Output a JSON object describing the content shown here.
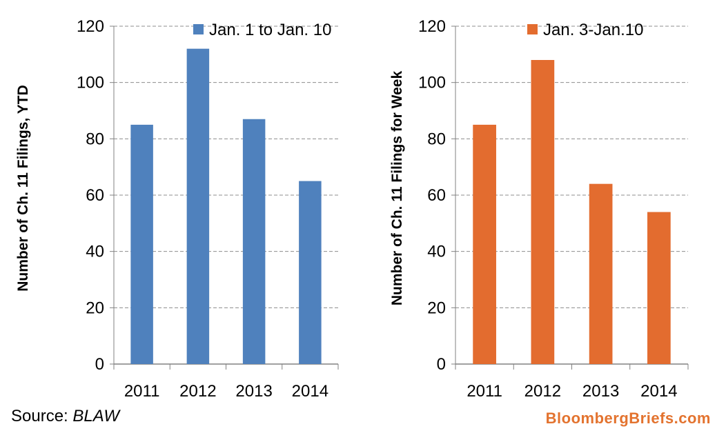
{
  "chart_data": [
    {
      "type": "bar",
      "categories": [
        "2011",
        "2012",
        "2013",
        "2014"
      ],
      "series": [
        {
          "name": "Jan. 1 to Jan. 10",
          "values": [
            85,
            112,
            87,
            65
          ],
          "color": "#4f81bd"
        }
      ],
      "ylabel": "Number of Ch. 11 Filings, YTD",
      "ylim": [
        0,
        120
      ],
      "yticks": [
        0,
        20,
        40,
        60,
        80,
        100,
        120
      ],
      "grid": true,
      "legend_position": "top-right"
    },
    {
      "type": "bar",
      "categories": [
        "2011",
        "2012",
        "2013",
        "2014"
      ],
      "series": [
        {
          "name": "Jan. 3-Jan.10",
          "values": [
            85,
            108,
            64,
            54
          ],
          "color": "#e36c2f"
        }
      ],
      "ylabel": "Number of Ch. 11 Filings for Week",
      "ylim": [
        0,
        120
      ],
      "yticks": [
        0,
        20,
        40,
        60,
        80,
        100,
        120
      ],
      "grid": true,
      "legend_position": "top-right"
    }
  ],
  "footer": {
    "source_label": "Source: ",
    "source_name": "BLAW",
    "brand": "BloombergBriefs.com"
  }
}
